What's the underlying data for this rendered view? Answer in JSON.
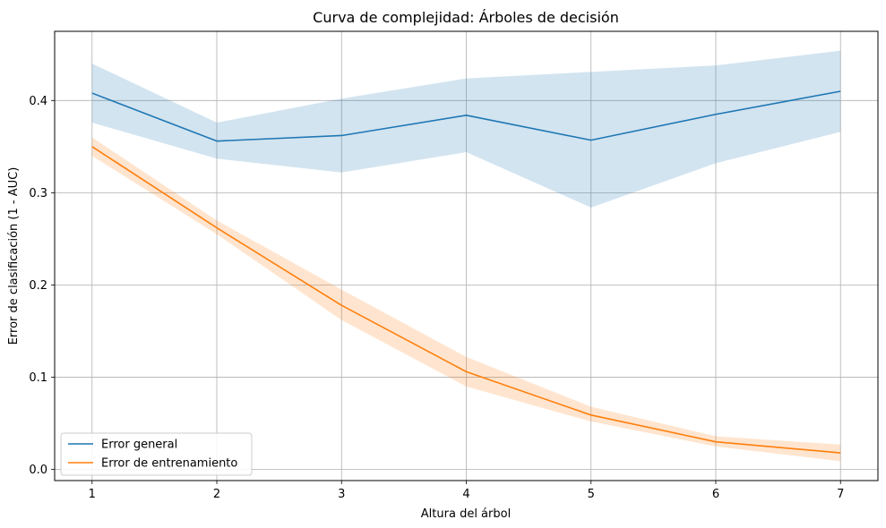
{
  "chart_data": {
    "type": "line",
    "title": "Curva de complejidad: Árboles de decisión",
    "xlabel": "Altura del árbol",
    "ylabel": "Error de clasificación (1 - AUC)",
    "xlim": [
      0.7,
      7.3
    ],
    "ylim": [
      -0.012,
      0.475
    ],
    "x": [
      1,
      2,
      3,
      4,
      5,
      6,
      7
    ],
    "xticks": [
      "1",
      "2",
      "3",
      "4",
      "5",
      "6",
      "7"
    ],
    "yticks": [
      {
        "value": 0.0,
        "label": "0.0"
      },
      {
        "value": 0.1,
        "label": "0.1"
      },
      {
        "value": 0.2,
        "label": "0.2"
      },
      {
        "value": 0.3,
        "label": "0.3"
      },
      {
        "value": 0.4,
        "label": "0.4"
      }
    ],
    "grid": true,
    "legend_position": "lower-left",
    "series": [
      {
        "name": "Error general",
        "color": "#1f77b4",
        "band_color": "#1f77b4",
        "values": [
          0.408,
          0.356,
          0.362,
          0.384,
          0.357,
          0.385,
          0.41
        ],
        "lower": [
          0.376,
          0.337,
          0.322,
          0.344,
          0.284,
          0.332,
          0.366
        ],
        "upper": [
          0.44,
          0.376,
          0.402,
          0.424,
          0.431,
          0.438,
          0.454
        ]
      },
      {
        "name": "Error de entrenamiento",
        "color": "#ff7f0e",
        "band_color": "#ff7f0e",
        "values": [
          0.35,
          0.262,
          0.178,
          0.106,
          0.059,
          0.03,
          0.018
        ],
        "lower": [
          0.34,
          0.255,
          0.162,
          0.09,
          0.052,
          0.025,
          0.009
        ],
        "upper": [
          0.36,
          0.27,
          0.195,
          0.122,
          0.068,
          0.036,
          0.027
        ]
      }
    ]
  }
}
